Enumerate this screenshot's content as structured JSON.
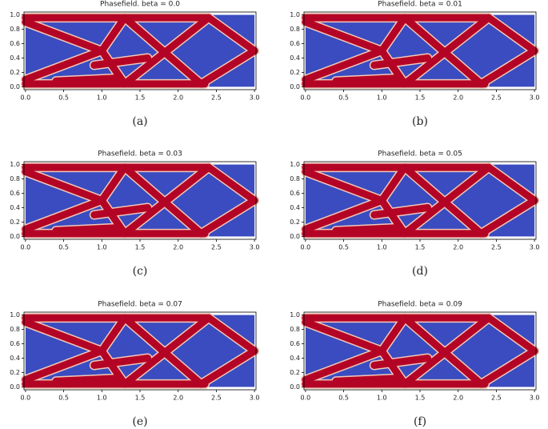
{
  "chart_data": [
    {
      "type": "image",
      "title": "Phasefield. beta = 0.0",
      "caption": "(a)",
      "xlim": [
        -0.02,
        3.02
      ],
      "ylim": [
        -0.04,
        1.04
      ],
      "xticks": [
        {
          "value": 0,
          "label": "0.0"
        },
        0.5,
        {
          "value": 1,
          "label": "1.0"
        },
        1.5,
        {
          "value": 2,
          "label": "2.0"
        },
        2.5,
        {
          "value": 3,
          "label": "3.0"
        }
      ],
      "yticks": [
        {
          "value": 0,
          "label": "0.0"
        },
        0.2,
        0.4,
        0.6,
        0.8,
        {
          "value": 1,
          "label": "1.0"
        }
      ]
    },
    {
      "type": "image",
      "title": "Phasefield. beta = 0.01",
      "caption": "(b)",
      "xlim": [
        -0.02,
        3.02
      ],
      "ylim": [
        -0.04,
        1.04
      ],
      "xticks": [
        {
          "value": 0,
          "label": "0.0"
        },
        0.5,
        {
          "value": 1,
          "label": "1.0"
        },
        1.5,
        {
          "value": 2,
          "label": "2.0"
        },
        2.5,
        {
          "value": 3,
          "label": "3.0"
        }
      ],
      "yticks": [
        {
          "value": 0,
          "label": "0.0"
        },
        0.2,
        0.4,
        0.6,
        0.8,
        {
          "value": 1,
          "label": "1.0"
        }
      ]
    },
    {
      "type": "image",
      "title": "Phasefield. beta = 0.03",
      "caption": "(c)",
      "xlim": [
        -0.02,
        3.02
      ],
      "ylim": [
        -0.04,
        1.04
      ],
      "xticks": [
        {
          "value": 0,
          "label": "0.0"
        },
        0.5,
        {
          "value": 1,
          "label": "1.0"
        },
        1.5,
        {
          "value": 2,
          "label": "2.0"
        },
        2.5,
        {
          "value": 3,
          "label": "3.0"
        }
      ],
      "yticks": [
        {
          "value": 0,
          "label": "0.0"
        },
        0.2,
        0.4,
        0.6,
        0.8,
        {
          "value": 1,
          "label": "1.0"
        }
      ]
    },
    {
      "type": "image",
      "title": "Phasefield. beta = 0.05",
      "caption": "(d)",
      "xlim": [
        -0.02,
        3.02
      ],
      "ylim": [
        -0.04,
        1.04
      ],
      "xticks": [
        {
          "value": 0,
          "label": "0.0"
        },
        0.5,
        {
          "value": 1,
          "label": "1.0"
        },
        1.5,
        {
          "value": 2,
          "label": "2.0"
        },
        2.5,
        {
          "value": 3,
          "label": "3.0"
        }
      ],
      "yticks": [
        {
          "value": 0,
          "label": "0.0"
        },
        0.2,
        0.4,
        0.6,
        0.8,
        {
          "value": 1,
          "label": "1.0"
        }
      ]
    },
    {
      "type": "image",
      "title": "Phasefield. beta = 0.07",
      "caption": "(e)",
      "xlim": [
        -0.02,
        3.02
      ],
      "ylim": [
        -0.04,
        1.04
      ],
      "xticks": [
        {
          "value": 0,
          "label": "0.0"
        },
        0.5,
        {
          "value": 1,
          "label": "1.0"
        },
        1.5,
        {
          "value": 2,
          "label": "2.0"
        },
        2.5,
        {
          "value": 3,
          "label": "3.0"
        }
      ],
      "yticks": [
        {
          "value": 0,
          "label": "0.0"
        },
        0.2,
        0.4,
        0.6,
        0.8,
        {
          "value": 1,
          "label": "1.0"
        }
      ]
    },
    {
      "type": "image",
      "title": "Phasefield. beta = 0.09",
      "caption": "(f)",
      "xlim": [
        -0.02,
        3.02
      ],
      "ylim": [
        -0.04,
        1.04
      ],
      "xticks": [
        {
          "value": 0,
          "label": "0.0"
        },
        0.5,
        {
          "value": 1,
          "label": "1.0"
        },
        1.5,
        {
          "value": 2,
          "label": "2.0"
        },
        2.5,
        {
          "value": 3,
          "label": "3.0"
        }
      ],
      "yticks": [
        {
          "value": 0,
          "label": "0.0"
        },
        0.2,
        0.4,
        0.6,
        0.8,
        {
          "value": 1,
          "label": "1.0"
        }
      ]
    }
  ]
}
